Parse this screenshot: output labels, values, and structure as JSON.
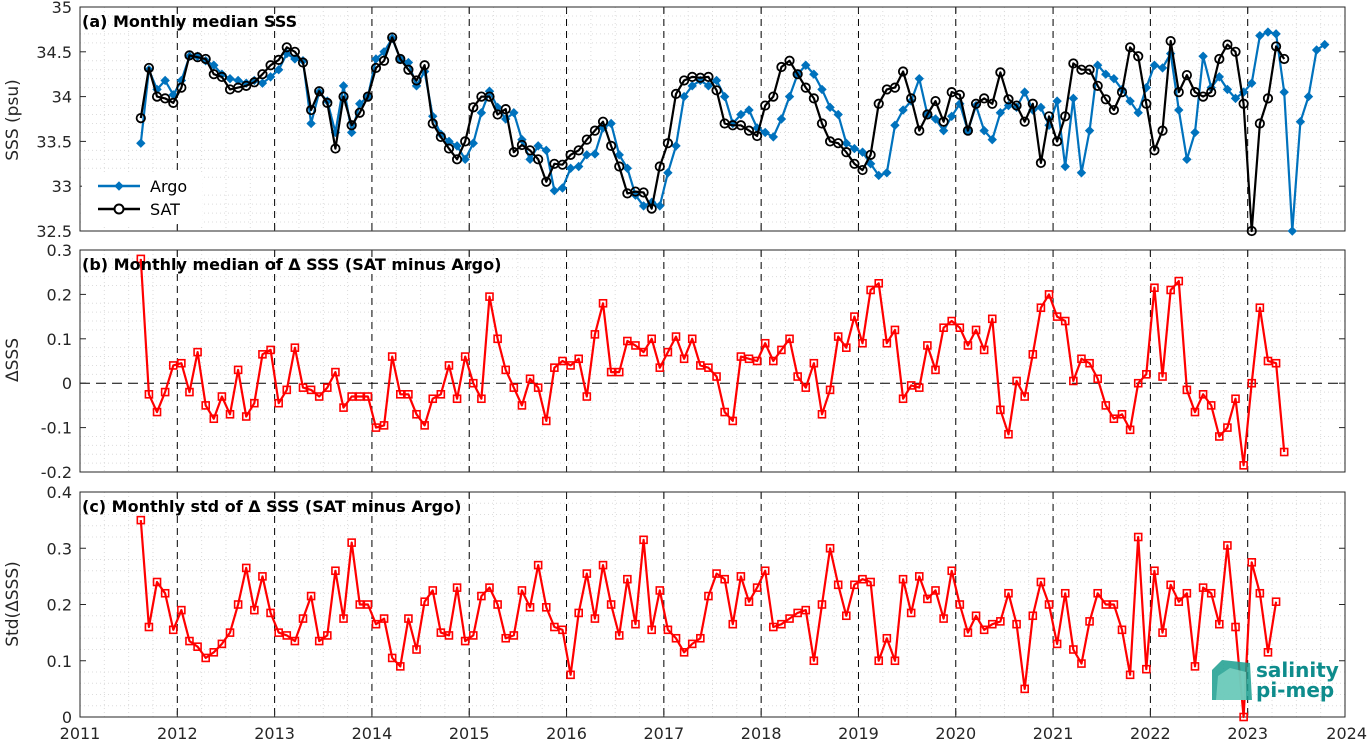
{
  "colors": {
    "argo": "#0072bd",
    "sat": "#000000",
    "delta": "#ff0000",
    "grid": "#dcdcdc",
    "axis": "#262626"
  },
  "logo": {
    "line1": "salinity",
    "line2": "pi-mep"
  },
  "chart_data": [
    {
      "type": "line",
      "title": "(a) Monthly median SSS",
      "ylabel": "SSS (psu)",
      "xlim": [
        2011,
        2024
      ],
      "ylim": [
        32.5,
        35
      ],
      "yticks": [
        "32.5",
        "33",
        "33.5",
        "34",
        "34.5",
        "35"
      ],
      "legend": "bottom-left",
      "grid": true,
      "series": [
        {
          "name": "Argo",
          "marker": "diamond",
          "x0": 2011.625,
          "values": [
            33.48,
            34.3,
            34.08,
            34.18,
            34.02,
            34.18,
            34.45,
            34.45,
            34.4,
            34.35,
            34.25,
            34.2,
            34.18,
            34.15,
            34.18,
            34.15,
            34.22,
            34.3,
            34.48,
            34.42,
            34.4,
            33.7,
            34.05,
            33.95,
            33.6,
            34.12,
            33.6,
            33.92,
            34.0,
            34.42,
            34.5,
            34.65,
            34.42,
            34.38,
            34.12,
            34.28,
            33.78,
            33.58,
            33.5,
            33.45,
            33.3,
            33.48,
            33.82,
            34.06,
            33.88,
            33.75,
            33.82,
            33.52,
            33.3,
            33.45,
            33.4,
            32.95,
            32.98,
            33.2,
            33.22,
            33.35,
            33.36,
            33.65,
            33.7,
            33.35,
            33.2,
            32.9,
            32.78,
            32.82,
            32.78,
            33.15,
            33.45,
            34.0,
            34.12,
            34.18,
            34.12,
            34.18,
            34.0,
            33.7,
            33.8,
            33.85,
            33.65,
            33.6,
            33.55,
            33.75,
            34.0,
            34.25,
            34.35,
            34.25,
            34.08,
            33.88,
            33.8,
            33.48,
            33.42,
            33.38,
            33.25,
            33.12,
            33.15,
            33.68,
            33.85,
            33.95,
            34.2,
            33.8,
            33.75,
            33.62,
            33.78,
            33.92,
            33.62,
            33.9,
            33.62,
            33.52,
            33.82,
            33.9,
            33.88,
            34.05,
            33.85,
            33.88,
            33.68,
            33.95,
            33.22,
            33.98,
            33.15,
            33.62,
            34.35,
            34.25,
            34.2,
            34.08,
            33.95,
            33.82,
            34.1,
            34.35,
            34.32,
            34.48,
            33.85,
            33.3,
            33.6,
            34.45,
            34.1,
            34.22,
            34.08,
            33.98,
            34.05,
            34.15,
            34.68,
            34.72,
            34.7,
            34.05,
            32.5,
            33.72,
            34.0,
            34.52,
            34.58
          ]
        },
        {
          "name": "SAT",
          "marker": "circle",
          "x0": 2011.625,
          "values": [
            33.76,
            34.32,
            34.0,
            33.98,
            33.93,
            34.1,
            34.46,
            34.44,
            34.42,
            34.25,
            34.22,
            34.08,
            34.1,
            34.12,
            34.16,
            34.25,
            34.35,
            34.41,
            34.55,
            34.5,
            34.38,
            33.85,
            34.06,
            33.93,
            33.42,
            34.0,
            33.68,
            33.82,
            34.0,
            34.32,
            34.4,
            34.66,
            34.42,
            34.3,
            34.18,
            34.35,
            33.7,
            33.55,
            33.42,
            33.3,
            33.5,
            33.88,
            34.0,
            34.0,
            33.8,
            33.86,
            33.38,
            33.46,
            33.4,
            33.3,
            33.05,
            33.25,
            33.24,
            33.35,
            33.4,
            33.52,
            33.62,
            33.72,
            33.45,
            33.22,
            32.92,
            32.94,
            32.93,
            32.75,
            33.22,
            33.48,
            34.03,
            34.18,
            34.22,
            34.21,
            34.22,
            34.07,
            33.7,
            33.68,
            33.68,
            33.62,
            33.56,
            33.9,
            34.0,
            34.33,
            34.4,
            34.25,
            34.1,
            33.98,
            33.7,
            33.5,
            33.48,
            33.38,
            33.25,
            33.18,
            33.35,
            33.92,
            34.08,
            34.1,
            34.28,
            33.98,
            33.62,
            33.8,
            33.95,
            33.72,
            34.05,
            34.02,
            33.62,
            33.92,
            33.98,
            33.92,
            34.27,
            33.97,
            33.9,
            33.72,
            33.92,
            33.26,
            33.78,
            33.5,
            33.78,
            34.37,
            34.3,
            34.3,
            34.12,
            33.97,
            33.85,
            34.05,
            34.55,
            34.45,
            33.92,
            33.4,
            33.62,
            34.62,
            34.05,
            34.24,
            34.05,
            34.0,
            34.05,
            34.42,
            34.58,
            34.5,
            33.92,
            32.5,
            33.7,
            33.98,
            34.56,
            34.42
          ]
        }
      ]
    },
    {
      "type": "line",
      "title": "(b) Monthly median of Δ SSS (SAT minus Argo)",
      "ylabel": "ΔSSS",
      "xlim": [
        2011,
        2024
      ],
      "ylim": [
        -0.2,
        0.3
      ],
      "yticks": [
        "-0.2",
        "-0.1",
        "0",
        "0.1",
        "0.2",
        "0.3"
      ],
      "zero_line": true,
      "grid": true,
      "series": [
        {
          "marker": "square",
          "x0": 2011.625,
          "values": [
            0.28,
            -0.025,
            -0.065,
            -0.02,
            0.04,
            0.045,
            -0.02,
            0.07,
            -0.05,
            -0.08,
            -0.03,
            -0.07,
            0.03,
            -0.075,
            -0.045,
            0.065,
            0.075,
            -0.045,
            -0.015,
            0.08,
            -0.01,
            -0.015,
            -0.03,
            -0.01,
            0.025,
            -0.055,
            -0.03,
            -0.03,
            -0.03,
            -0.1,
            -0.095,
            0.06,
            -0.025,
            -0.025,
            -0.07,
            -0.095,
            -0.035,
            -0.025,
            0.04,
            -0.035,
            0.06,
            0.0,
            -0.035,
            0.195,
            0.1,
            0.03,
            -0.01,
            -0.05,
            0.01,
            -0.01,
            -0.085,
            0.035,
            0.05,
            0.04,
            0.055,
            -0.03,
            0.11,
            0.18,
            0.025,
            0.025,
            0.095,
            0.085,
            0.07,
            0.1,
            0.035,
            0.07,
            0.105,
            0.055,
            0.1,
            0.04,
            0.035,
            0.015,
            -0.065,
            -0.085,
            0.06,
            0.055,
            0.05,
            0.09,
            0.05,
            0.075,
            0.1,
            0.015,
            -0.01,
            0.045,
            -0.07,
            -0.015,
            0.105,
            0.08,
            0.15,
            0.09,
            0.21,
            0.225,
            0.09,
            0.12,
            -0.035,
            -0.005,
            -0.01,
            0.085,
            0.03,
            0.125,
            0.14,
            0.125,
            0.085,
            0.12,
            0.075,
            0.145,
            -0.06,
            -0.115,
            0.005,
            -0.03,
            0.065,
            0.17,
            0.2,
            0.15,
            0.14,
            0.005,
            0.055,
            0.045,
            0.01,
            -0.05,
            -0.08,
            -0.07,
            -0.105,
            0.0,
            0.02,
            0.215,
            0.015,
            0.21,
            0.23,
            -0.015,
            -0.065,
            -0.025,
            -0.05,
            -0.12,
            -0.1,
            -0.035,
            -0.185,
            0.0,
            0.17,
            0.05,
            0.045,
            -0.155
          ]
        }
      ]
    },
    {
      "type": "line",
      "title": "(c) Monthly std of Δ SSS (SAT minus Argo)",
      "ylabel": "Std(ΔSSS)",
      "xlim": [
        2011,
        2024
      ],
      "ylim": [
        0,
        0.4
      ],
      "yticks": [
        "0",
        "0.1",
        "0.2",
        "0.3",
        "0.4"
      ],
      "xticks": [
        "2011",
        "2012",
        "2013",
        "2014",
        "2015",
        "2016",
        "2017",
        "2018",
        "2019",
        "2020",
        "2021",
        "2022",
        "2023",
        "2024"
      ],
      "grid": true,
      "series": [
        {
          "marker": "square",
          "x0": 2011.625,
          "values": [
            0.35,
            0.16,
            0.24,
            0.22,
            0.155,
            0.19,
            0.135,
            0.125,
            0.105,
            0.115,
            0.13,
            0.15,
            0.2,
            0.265,
            0.19,
            0.25,
            0.185,
            0.15,
            0.145,
            0.135,
            0.175,
            0.215,
            0.135,
            0.145,
            0.26,
            0.175,
            0.31,
            0.2,
            0.2,
            0.165,
            0.175,
            0.105,
            0.09,
            0.175,
            0.12,
            0.205,
            0.225,
            0.15,
            0.145,
            0.23,
            0.135,
            0.145,
            0.215,
            0.23,
            0.2,
            0.14,
            0.145,
            0.225,
            0.195,
            0.27,
            0.195,
            0.16,
            0.155,
            0.075,
            0.185,
            0.255,
            0.175,
            0.27,
            0.2,
            0.145,
            0.245,
            0.165,
            0.315,
            0.155,
            0.225,
            0.155,
            0.14,
            0.115,
            0.13,
            0.14,
            0.215,
            0.255,
            0.245,
            0.165,
            0.25,
            0.205,
            0.23,
            0.26,
            0.16,
            0.165,
            0.175,
            0.185,
            0.19,
            0.1,
            0.2,
            0.3,
            0.235,
            0.18,
            0.235,
            0.245,
            0.24,
            0.1,
            0.14,
            0.1,
            0.245,
            0.185,
            0.25,
            0.21,
            0.225,
            0.175,
            0.26,
            0.2,
            0.15,
            0.18,
            0.155,
            0.165,
            0.17,
            0.22,
            0.165,
            0.05,
            0.18,
            0.24,
            0.2,
            0.13,
            0.22,
            0.12,
            0.095,
            0.17,
            0.22,
            0.2,
            0.2,
            0.155,
            0.075,
            0.32,
            0.085,
            0.26,
            0.15,
            0.235,
            0.205,
            0.22,
            0.09,
            0.23,
            0.22,
            0.165,
            0.305,
            0.16,
            0.0,
            0.275,
            0.22,
            0.115,
            0.205
          ]
        }
      ]
    }
  ]
}
